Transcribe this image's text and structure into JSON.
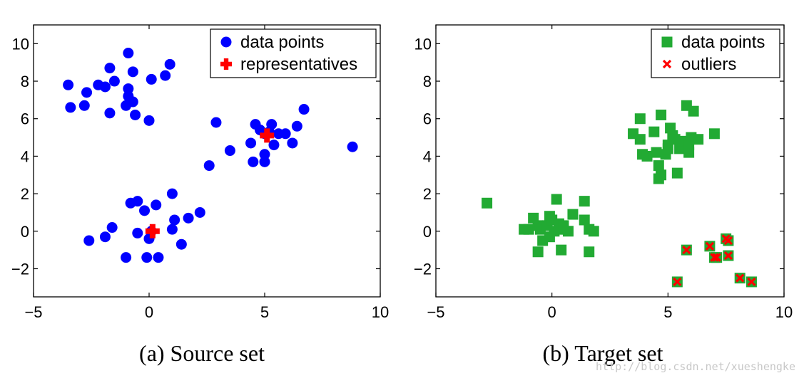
{
  "chart_data": [
    {
      "type": "scatter",
      "caption": "(a) Source set",
      "xlim": [
        -5,
        10
      ],
      "ylim": [
        -3.5,
        11
      ],
      "xticks": [
        -5,
        0,
        5,
        10
      ],
      "yticks": [
        -2,
        0,
        2,
        4,
        6,
        8,
        10
      ],
      "grid": false,
      "legend_position": "top-right",
      "series": [
        {
          "name": "data points",
          "marker": "circle",
          "color": "#0000ff",
          "points": [
            [
              -3.5,
              7.8
            ],
            [
              -3.4,
              6.6
            ],
            [
              -2.8,
              6.7
            ],
            [
              -2.7,
              7.4
            ],
            [
              -2.2,
              7.8
            ],
            [
              -1.9,
              7.7
            ],
            [
              -1.7,
              8.7
            ],
            [
              -1.5,
              8.0
            ],
            [
              -1.7,
              6.3
            ],
            [
              -1.0,
              6.7
            ],
            [
              -0.9,
              9.5
            ],
            [
              -0.9,
              7.6
            ],
            [
              -0.9,
              7.2
            ],
            [
              -0.7,
              6.9
            ],
            [
              -0.7,
              8.5
            ],
            [
              -0.6,
              6.2
            ],
            [
              0.1,
              8.1
            ],
            [
              0.0,
              5.9
            ],
            [
              0.7,
              8.3
            ],
            [
              0.9,
              8.9
            ],
            [
              2.6,
              3.5
            ],
            [
              2.9,
              5.8
            ],
            [
              3.5,
              4.3
            ],
            [
              4.4,
              4.7
            ],
            [
              4.5,
              3.7
            ],
            [
              4.6,
              5.7
            ],
            [
              4.8,
              5.4
            ],
            [
              5.0,
              3.7
            ],
            [
              5.0,
              4.1
            ],
            [
              5.0,
              5.2
            ],
            [
              5.2,
              5.3
            ],
            [
              5.3,
              5.7
            ],
            [
              5.4,
              4.6
            ],
            [
              5.6,
              5.2
            ],
            [
              5.9,
              5.2
            ],
            [
              6.2,
              4.7
            ],
            [
              6.4,
              5.6
            ],
            [
              6.7,
              6.5
            ],
            [
              8.8,
              4.5
            ],
            [
              -2.6,
              -0.5
            ],
            [
              -1.9,
              -0.3
            ],
            [
              -1.6,
              0.2
            ],
            [
              -1.0,
              -1.4
            ],
            [
              -0.8,
              1.5
            ],
            [
              -0.5,
              1.6
            ],
            [
              -0.5,
              -0.1
            ],
            [
              -0.2,
              1.1
            ],
            [
              -0.1,
              -1.4
            ],
            [
              0.0,
              -0.4
            ],
            [
              0.3,
              1.4
            ],
            [
              0.4,
              -1.4
            ],
            [
              1.0,
              2.0
            ],
            [
              1.0,
              0.1
            ],
            [
              1.1,
              0.6
            ],
            [
              1.4,
              -0.7
            ],
            [
              1.7,
              0.7
            ],
            [
              2.2,
              1.0
            ],
            [
              0.1,
              0.0
            ]
          ]
        },
        {
          "name": "representatives",
          "marker": "plus",
          "color": "#ff0000",
          "points": [
            [
              5.1,
              5.1
            ],
            [
              0.15,
              0.0
            ]
          ]
        }
      ]
    },
    {
      "type": "scatter",
      "caption": "(b) Target set",
      "xlim": [
        -5,
        10
      ],
      "ylim": [
        -3.5,
        11
      ],
      "xticks": [
        -5,
        0,
        5,
        10
      ],
      "yticks": [
        -2,
        0,
        2,
        4,
        6,
        8,
        10
      ],
      "grid": false,
      "legend_position": "top-right",
      "series": [
        {
          "name": "data points",
          "marker": "square",
          "color": "#22aa33",
          "points": [
            [
              -2.8,
              1.5
            ],
            [
              -1.2,
              0.1
            ],
            [
              -1.0,
              0.1
            ],
            [
              -0.8,
              0.7
            ],
            [
              -0.6,
              -1.1
            ],
            [
              -0.6,
              0.3
            ],
            [
              -0.5,
              0.1
            ],
            [
              -0.4,
              -0.5
            ],
            [
              -0.2,
              0.3
            ],
            [
              -0.1,
              0.8
            ],
            [
              -0.1,
              -0.3
            ],
            [
              0.0,
              0.6
            ],
            [
              0.1,
              0.0
            ],
            [
              0.2,
              1.7
            ],
            [
              0.3,
              0.4
            ],
            [
              0.3,
              0.1
            ],
            [
              0.4,
              -1.0
            ],
            [
              0.5,
              0.3
            ],
            [
              0.7,
              0.0
            ],
            [
              0.9,
              0.9
            ],
            [
              1.4,
              1.6
            ],
            [
              1.4,
              0.6
            ],
            [
              1.6,
              -1.1
            ],
            [
              1.6,
              0.1
            ],
            [
              1.8,
              0.0
            ],
            [
              3.5,
              5.2
            ],
            [
              3.8,
              4.9
            ],
            [
              3.8,
              6.0
            ],
            [
              3.9,
              4.1
            ],
            [
              4.1,
              4.0
            ],
            [
              4.4,
              5.3
            ],
            [
              4.5,
              4.2
            ],
            [
              4.6,
              3.5
            ],
            [
              4.6,
              2.8
            ],
            [
              4.7,
              3.0
            ],
            [
              4.7,
              6.2
            ],
            [
              4.9,
              4.1
            ],
            [
              5.0,
              4.6
            ],
            [
              5.0,
              4.4
            ],
            [
              5.1,
              5.5
            ],
            [
              5.2,
              5.1
            ],
            [
              5.3,
              4.9
            ],
            [
              5.4,
              3.1
            ],
            [
              5.5,
              4.4
            ],
            [
              5.6,
              4.8
            ],
            [
              5.8,
              6.7
            ],
            [
              5.9,
              4.2
            ],
            [
              5.9,
              4.6
            ],
            [
              6.0,
              5.0
            ],
            [
              6.1,
              6.4
            ],
            [
              6.3,
              4.9
            ],
            [
              7.0,
              5.2
            ],
            [
              5.4,
              -2.7
            ],
            [
              5.8,
              -1.0
            ],
            [
              6.8,
              -0.8
            ],
            [
              7.0,
              -1.4
            ],
            [
              7.1,
              -1.4
            ],
            [
              7.5,
              -0.4
            ],
            [
              7.6,
              -0.5
            ],
            [
              7.6,
              -1.3
            ],
            [
              8.1,
              -2.5
            ],
            [
              8.6,
              -2.7
            ]
          ]
        },
        {
          "name": "outliers",
          "marker": "x",
          "color": "#ff0000",
          "points": [
            [
              5.4,
              -2.7
            ],
            [
              5.8,
              -1.0
            ],
            [
              6.8,
              -0.8
            ],
            [
              7.0,
              -1.4
            ],
            [
              7.1,
              -1.4
            ],
            [
              7.5,
              -0.4
            ],
            [
              7.6,
              -0.5
            ],
            [
              7.6,
              -1.3
            ],
            [
              8.1,
              -2.5
            ],
            [
              8.6,
              -2.7
            ]
          ]
        }
      ]
    }
  ],
  "watermark": "http://blog.csdn.net/xueshengke"
}
